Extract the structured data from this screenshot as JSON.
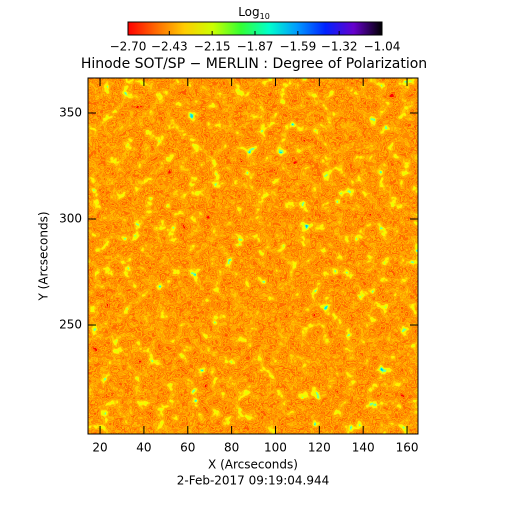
{
  "chart_data": {
    "type": "heatmap",
    "title": "Hinode SOT/SP − MERLIN : Degree of Polarization",
    "x_label": "X (Arcseconds)",
    "y_label": "Y (Arcseconds)",
    "footer": "2-Feb-2017 09:19:04.944",
    "colorbar": {
      "label": "Log",
      "label_subscript": "10",
      "lim": [
        -2.7,
        -1.04
      ],
      "ticks": [
        {
          "value": -2.7,
          "label": "−2.70"
        },
        {
          "value": -2.43,
          "label": "−2.43"
        },
        {
          "value": -2.15,
          "label": "−2.15"
        },
        {
          "value": -1.87,
          "label": "−1.87"
        },
        {
          "value": -1.59,
          "label": "−1.59"
        },
        {
          "value": -1.32,
          "label": "−1.32"
        },
        {
          "value": -1.04,
          "label": "−1.04"
        }
      ],
      "colors": [
        "#ff0000",
        "#ff6a00",
        "#ffcc00",
        "#ccff00",
        "#33ff33",
        "#00ffcc",
        "#0099ff",
        "#0022ff",
        "#6600cc",
        "#000000"
      ]
    },
    "xlim": [
      14.5,
      165
    ],
    "ylim": [
      198.6,
      366.5
    ],
    "xticks": [
      20,
      40,
      60,
      80,
      100,
      120,
      140,
      160
    ],
    "yticks": [
      250,
      300,
      350
    ]
  }
}
